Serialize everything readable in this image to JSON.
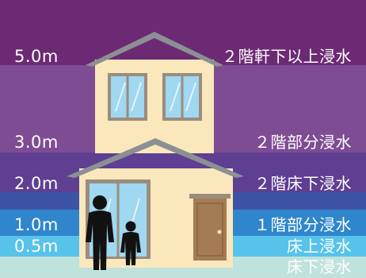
{
  "bands": [
    {
      "key": "top",
      "color": "#6b2a73"
    },
    {
      "key": "upper",
      "color": "#7e4c93"
    },
    {
      "key": "floor2_part",
      "color": "#5e3f92"
    },
    {
      "key": "floor2_under",
      "color": "#3d54a6"
    },
    {
      "key": "floor1_part",
      "color": "#2f86cc"
    },
    {
      "key": "above_floor",
      "color": "#58c3ea"
    },
    {
      "key": "below_floor",
      "color": "#bfe3dc"
    }
  ],
  "levels": [
    {
      "depth": "5.0m",
      "label": "２階軒下以上浸水"
    },
    {
      "depth": "3.0m",
      "label": "２階部分浸水"
    },
    {
      "depth": "2.0m",
      "label": "２階床下浸水"
    },
    {
      "depth": "1.0m",
      "label": "１階部分浸水"
    },
    {
      "depth": "0.5m",
      "label": "床上浸水"
    },
    {
      "depth": "",
      "label": "床下浸水"
    }
  ],
  "colors": {
    "house_wall": "#fae8bc",
    "roof": "#8c8f93",
    "window_frame": "#9a8d7e",
    "window_glass": "#9fd8f0",
    "door": "#a57b55",
    "person": "#111111"
  }
}
